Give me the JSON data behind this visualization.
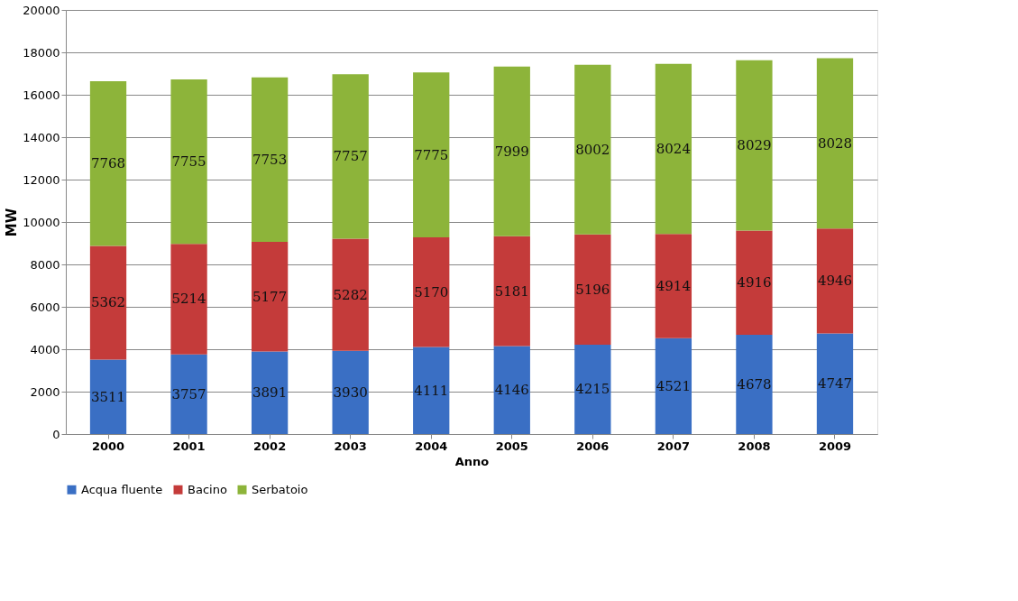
{
  "chart_data": {
    "type": "bar",
    "stacked": true,
    "xlabel": "Anno",
    "ylabel": "MW",
    "categories": [
      "2000",
      "2001",
      "2002",
      "2003",
      "2004",
      "2005",
      "2006",
      "2007",
      "2008",
      "2009"
    ],
    "series": [
      {
        "name": "Acqua fluente",
        "color": "#3a6fc4",
        "values": [
          3511,
          3757,
          3891,
          3930,
          4111,
          4146,
          4215,
          4521,
          4678,
          4747
        ]
      },
      {
        "name": "Bacino",
        "color": "#c43b3a",
        "values": [
          5362,
          5214,
          5177,
          5282,
          5170,
          5181,
          5196,
          4914,
          4916,
          4946
        ]
      },
      {
        "name": "Serbatoio",
        "color": "#8db43a",
        "values": [
          7768,
          7755,
          7753,
          7757,
          7775,
          7999,
          8002,
          8024,
          8029,
          8028
        ]
      }
    ],
    "ylim": [
      0,
      20000
    ],
    "yticks": [
      0,
      2000,
      4000,
      6000,
      8000,
      10000,
      12000,
      14000,
      16000,
      18000,
      20000
    ],
    "grid": "y",
    "legend": "bottom",
    "data_labels": true
  }
}
